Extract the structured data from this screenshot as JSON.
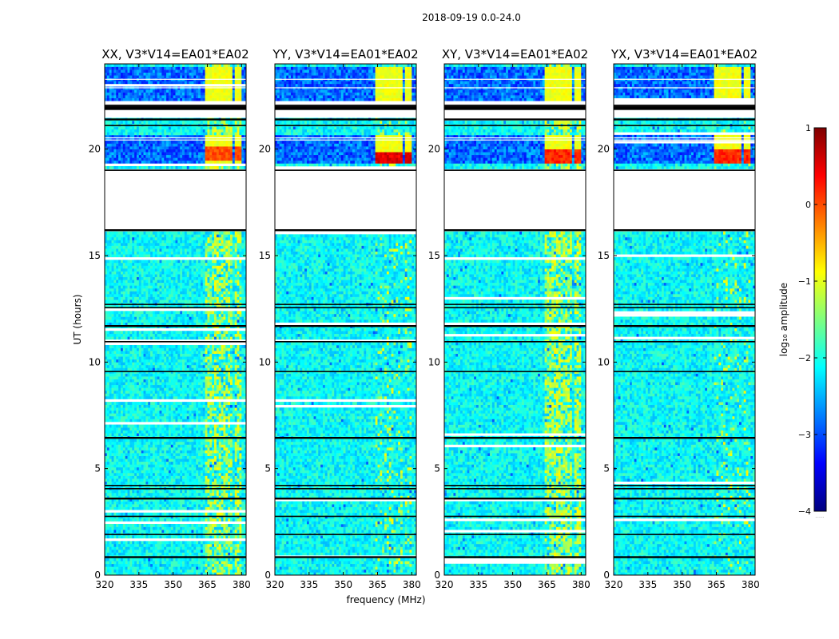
{
  "figure": {
    "suptitle": "2018-09-19 0.0-24.0",
    "xlabel": "frequency (MHz)",
    "ylabel": "UT (hours)",
    "colorbar_label": "log₁₀ amplitude",
    "colorbar_note": "......"
  },
  "chart_data": {
    "type": "heatmap",
    "title": "2018-09-19 0.0-24.0",
    "xlabel": "frequency (MHz)",
    "ylabel": "UT (hours)",
    "xlim": [
      320,
      382
    ],
    "ylim": [
      0,
      24
    ],
    "xticks": [
      320,
      335,
      350,
      365,
      380
    ],
    "yticks": [
      0,
      5,
      10,
      15,
      20
    ],
    "colorbar": {
      "label": "log10 amplitude",
      "range": [
        -4,
        1
      ],
      "ticks": [
        -4,
        -3,
        -2,
        -1,
        0,
        1
      ],
      "tick_labels": [
        "−4",
        "−3",
        "−2",
        "−1",
        "0",
        "1"
      ],
      "colormap": [
        "#00007f",
        "#0000ff",
        "#007fff",
        "#00ffff",
        "#7fff7f",
        "#ffff00",
        "#ff7f00",
        "#ff0000",
        "#7f0000"
      ]
    },
    "blank_hours": [
      [
        16.2,
        19.0
      ],
      [
        21.5,
        22.3
      ]
    ],
    "quiet_hours": [
      [
        19.4,
        20.6
      ],
      [
        22.3,
        23.8
      ]
    ],
    "flag_lines_hours": [
      0.85,
      1.9,
      2.75,
      3.6,
      4.05,
      4.2,
      6.45,
      9.55,
      10.95,
      11.7,
      12.55,
      12.7,
      16.2,
      19.0,
      21.1,
      21.4,
      21.95,
      22.05
    ],
    "panels": [
      {
        "title": "XX, V3*V14=EA01*EA02",
        "rfi_band_mhz": [
          364,
          381
        ],
        "rfi_strength": 0.9,
        "bright_hour": [
          19.5,
          20.1
        ],
        "bright_level": 0.2
      },
      {
        "title": "YY, V3*V14=EA01*EA02",
        "rfi_band_mhz": [
          364,
          381
        ],
        "rfi_strength": 0.25,
        "bright_hour": [
          19.3,
          19.9
        ],
        "bright_level": 0.7
      },
      {
        "title": "XY, V3*V14=EA01*EA02",
        "rfi_band_mhz": [
          364,
          381
        ],
        "rfi_strength": 1.0,
        "bright_hour": [
          19.4,
          20.0
        ],
        "bright_level": 0.4
      },
      {
        "title": "YX, V3*V14=EA01*EA02",
        "rfi_band_mhz": [
          364,
          381
        ],
        "rfi_strength": 0.2,
        "bright_hour": [
          19.4,
          20.0
        ],
        "bright_level": 0.4
      }
    ]
  }
}
